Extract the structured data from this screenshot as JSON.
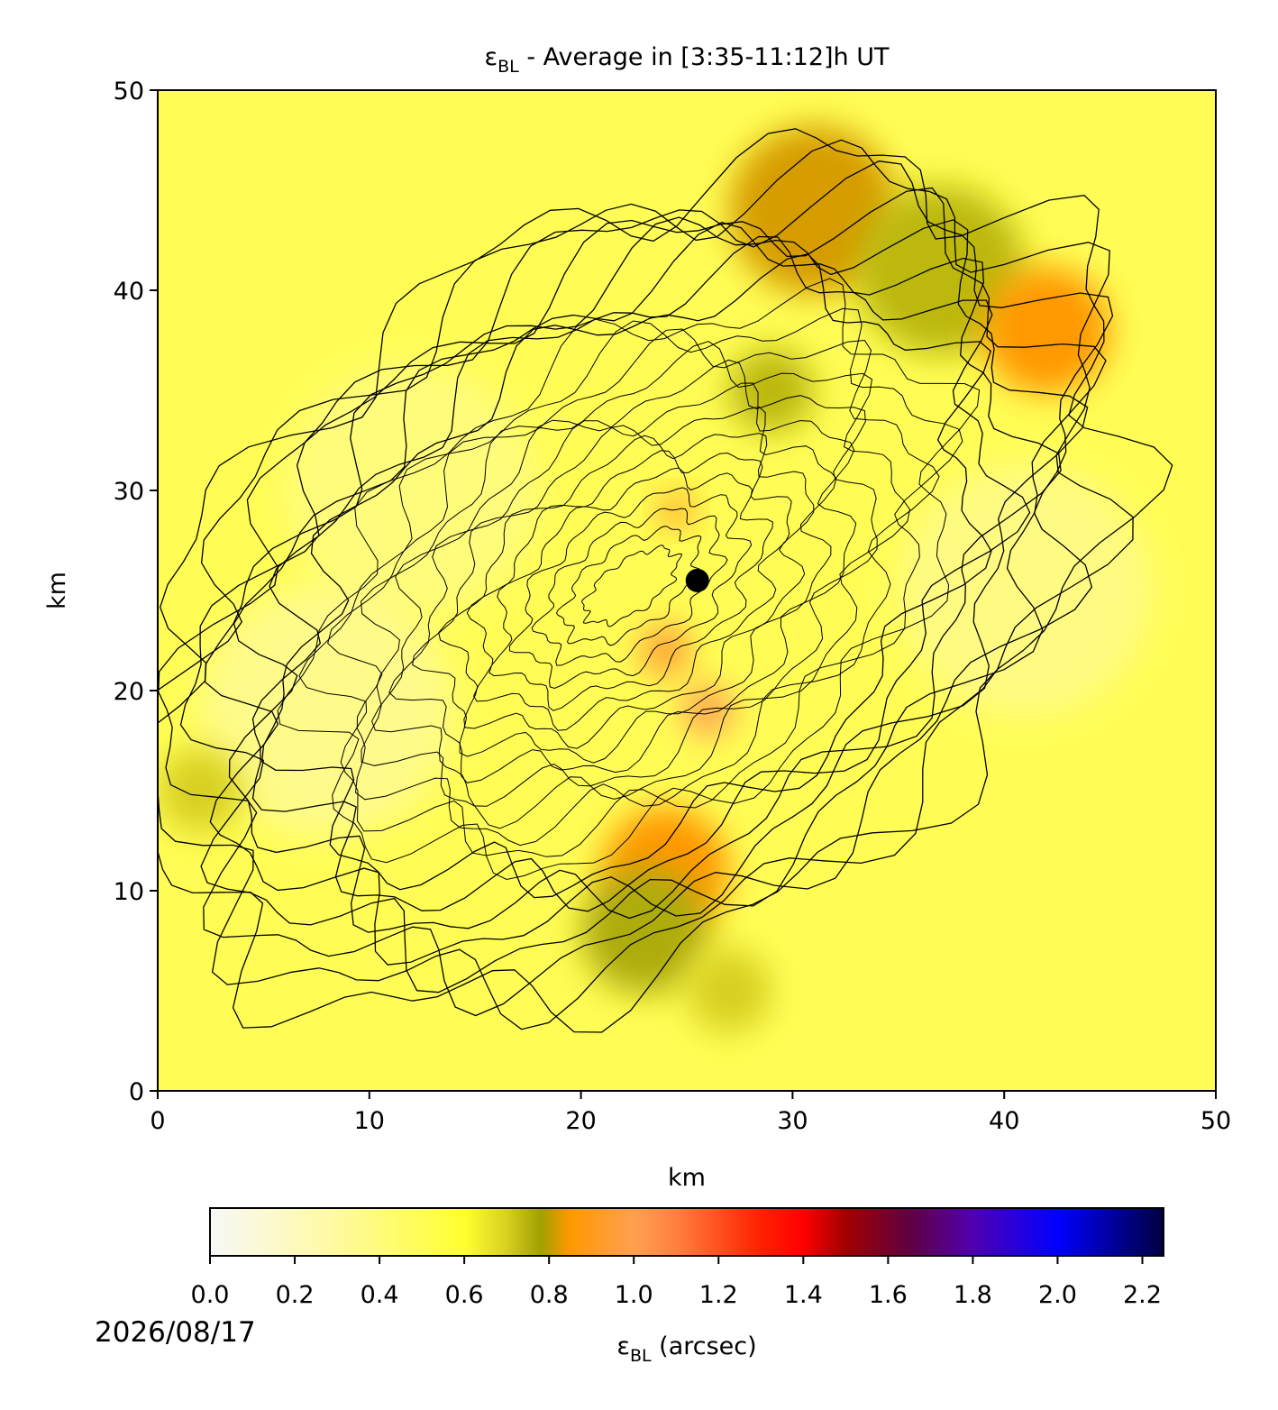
{
  "chart_data": {
    "type": "heatmap",
    "title": {
      "symbol": "ε",
      "subscript": "BL",
      "text": " - Average in [3:35-11:12]h UT"
    },
    "x_label": "km",
    "y_label": "km",
    "xlim": [
      0,
      50
    ],
    "ylim": [
      0,
      50
    ],
    "xticks": [
      0,
      10,
      20,
      30,
      40,
      50
    ],
    "yticks": [
      0,
      10,
      20,
      30,
      40,
      50
    ],
    "background_value": 0.5,
    "regions": [
      {
        "x": 31,
        "y": 44,
        "r": 4,
        "value": 0.82
      },
      {
        "x": 37,
        "y": 41,
        "r": 4,
        "value": 0.74
      },
      {
        "x": 42,
        "y": 38,
        "r": 3,
        "value": 0.86
      },
      {
        "x": 29,
        "y": 35,
        "r": 2,
        "value": 0.74
      },
      {
        "x": 24,
        "y": 11,
        "r": 3,
        "value": 0.86
      },
      {
        "x": 23,
        "y": 8,
        "r": 3,
        "value": 0.76
      },
      {
        "x": 26,
        "y": 19,
        "r": 1.2,
        "value": 1.0
      },
      {
        "x": 24,
        "y": 22,
        "r": 1.2,
        "value": 0.95
      },
      {
        "x": 24.5,
        "y": 29,
        "r": 0.8,
        "value": 0.9
      },
      {
        "x": 12,
        "y": 30,
        "r": 6,
        "value": 0.4
      },
      {
        "x": 8,
        "y": 19,
        "r": 6,
        "value": 0.36
      },
      {
        "x": 41,
        "y": 25,
        "r": 6,
        "value": 0.38
      },
      {
        "x": 2,
        "y": 15,
        "r": 2,
        "value": 0.7
      },
      {
        "x": 27,
        "y": 5,
        "r": 2,
        "value": 0.7
      }
    ],
    "marker": {
      "x": 25.5,
      "y": 25.5,
      "color": "#000000"
    },
    "colorbar": {
      "label": {
        "symbol": "ε",
        "subscript": "BL",
        "text": " (arcsec)"
      },
      "clim": [
        0,
        2.25
      ],
      "ticks": [
        {
          "value": 0,
          "label": "0.0"
        },
        {
          "value": 0.2,
          "label": "0.2"
        },
        {
          "value": 0.4,
          "label": "0.4"
        },
        {
          "value": 0.6,
          "label": "0.6"
        },
        {
          "value": 0.8,
          "label": "0.8"
        },
        {
          "value": 1,
          "label": "1.0"
        },
        {
          "value": 1.2,
          "label": "1.2"
        },
        {
          "value": 1.4,
          "label": "1.4"
        },
        {
          "value": 1.6,
          "label": "1.6"
        },
        {
          "value": 1.8,
          "label": "1.8"
        },
        {
          "value": 2,
          "label": "2.0"
        },
        {
          "value": 2.2,
          "label": "2.2"
        }
      ],
      "colormap": [
        [
          0,
          "#f8f8f8"
        ],
        [
          0.3,
          "#fffaa0"
        ],
        [
          0.6,
          "#ffff30"
        ],
        [
          0.7,
          "#d8d020"
        ],
        [
          0.78,
          "#a0a000"
        ],
        [
          0.85,
          "#ff9900"
        ],
        [
          1.0,
          "#ffa050"
        ],
        [
          1.1,
          "#ff8040"
        ],
        [
          1.3,
          "#ff2000"
        ],
        [
          1.4,
          "#ff0000"
        ],
        [
          1.5,
          "#a00000"
        ],
        [
          1.65,
          "#600040"
        ],
        [
          1.8,
          "#5000b0"
        ],
        [
          2.0,
          "#0000ff"
        ],
        [
          2.25,
          "#000040"
        ]
      ]
    },
    "date": "2026/08/17"
  }
}
